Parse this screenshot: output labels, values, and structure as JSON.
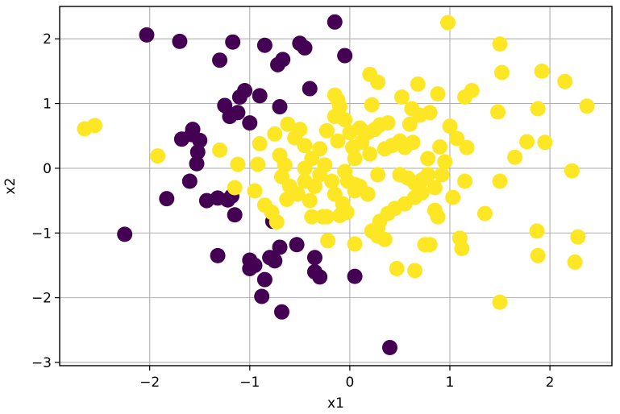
{
  "chart_data": {
    "type": "scatter",
    "title": "",
    "xlabel": "x1",
    "ylabel": "x2",
    "xlim": [
      -2.9,
      2.62
    ],
    "ylim": [
      -3.05,
      2.5
    ],
    "xticks": [
      -2,
      -1,
      0,
      1,
      2
    ],
    "yticks": [
      -3,
      -2,
      -1,
      0,
      1,
      2
    ],
    "xtick_labels": [
      "−2",
      "−1",
      "0",
      "1",
      "2"
    ],
    "ytick_labels": [
      "−3",
      "−2",
      "−1",
      "0",
      "1",
      "2"
    ],
    "grid": true,
    "colors": {
      "class_0": "#440154",
      "class_1": "#fde725",
      "grid": "#b0b0b0"
    },
    "series": [
      {
        "points": [
          [
            -2.03,
            2.06
          ],
          [
            -1.7,
            1.96
          ],
          [
            -1.17,
            1.95
          ],
          [
            -0.85,
            1.9
          ],
          [
            -0.5,
            1.93
          ],
          [
            -0.45,
            1.86
          ],
          [
            -0.15,
            2.26
          ],
          [
            -0.05,
            1.74
          ],
          [
            -1.3,
            1.67
          ],
          [
            -0.67,
            1.68
          ],
          [
            -0.72,
            1.6
          ],
          [
            -0.4,
            1.23
          ],
          [
            -1.05,
            1.2
          ],
          [
            -1.1,
            1.1
          ],
          [
            -0.9,
            1.12
          ],
          [
            -0.7,
            0.95
          ],
          [
            -1.25,
            0.97
          ],
          [
            -1.2,
            0.8
          ],
          [
            -1.12,
            0.86
          ],
          [
            -1.0,
            0.7
          ],
          [
            -1.57,
            0.6
          ],
          [
            -1.68,
            0.45
          ],
          [
            -1.5,
            0.43
          ],
          [
            -1.58,
            0.52
          ],
          [
            -1.52,
            0.25
          ],
          [
            -1.53,
            0.07
          ],
          [
            -1.6,
            -0.2
          ],
          [
            -1.83,
            -0.47
          ],
          [
            -1.43,
            -0.5
          ],
          [
            -1.32,
            -0.46
          ],
          [
            -1.22,
            -0.49
          ],
          [
            -1.18,
            -0.43
          ],
          [
            -1.15,
            -0.72
          ],
          [
            -2.25,
            -1.02
          ],
          [
            -0.77,
            -0.82
          ],
          [
            -0.7,
            -1.22
          ],
          [
            -0.53,
            -1.18
          ],
          [
            -1.32,
            -1.35
          ],
          [
            -1.0,
            -1.42
          ],
          [
            -0.95,
            -1.5
          ],
          [
            -1.0,
            -1.55
          ],
          [
            -0.75,
            -1.43
          ],
          [
            -0.8,
            -1.38
          ],
          [
            -0.35,
            -1.38
          ],
          [
            -0.35,
            -1.6
          ],
          [
            -0.3,
            -1.68
          ],
          [
            -0.85,
            -1.72
          ],
          [
            -0.88,
            -1.98
          ],
          [
            0.05,
            -1.67
          ],
          [
            -0.68,
            -2.22
          ],
          [
            0.4,
            -2.77
          ]
        ]
      },
      {
        "points": [
          [
            -2.65,
            0.61
          ],
          [
            -2.55,
            0.66
          ],
          [
            -1.92,
            0.19
          ],
          [
            -1.3,
            0.28
          ],
          [
            -1.12,
            0.06
          ],
          [
            -1.15,
            -0.3
          ],
          [
            -0.95,
            -0.35
          ],
          [
            -0.92,
            0.06
          ],
          [
            -0.9,
            0.38
          ],
          [
            -0.85,
            -0.57
          ],
          [
            -0.78,
            -0.68
          ],
          [
            -0.73,
            -0.83
          ],
          [
            -0.75,
            0.53
          ],
          [
            -0.62,
            0.68
          ],
          [
            -0.55,
            0.47
          ],
          [
            -0.5,
            0.6
          ],
          [
            -0.45,
            0.35
          ],
          [
            -0.7,
            0.2
          ],
          [
            -0.65,
            0.05
          ],
          [
            -0.68,
            -0.13
          ],
          [
            -0.6,
            -0.28
          ],
          [
            -0.63,
            -0.48
          ],
          [
            -0.52,
            -0.4
          ],
          [
            -0.45,
            -0.2
          ],
          [
            -0.45,
            0.0
          ],
          [
            -0.38,
            0.15
          ],
          [
            -0.3,
            0.3
          ],
          [
            -0.25,
            0.05
          ],
          [
            -0.3,
            -0.1
          ],
          [
            -0.35,
            -0.28
          ],
          [
            -0.4,
            -0.5
          ],
          [
            -0.38,
            -0.75
          ],
          [
            -0.27,
            -0.75
          ],
          [
            -0.22,
            -1.12
          ],
          [
            -0.23,
            0.58
          ],
          [
            -0.15,
            0.8
          ],
          [
            -0.12,
            1.05
          ],
          [
            -0.15,
            1.13
          ],
          [
            -0.1,
            0.95
          ],
          [
            -0.05,
            0.75
          ],
          [
            0.0,
            0.55
          ],
          [
            0.03,
            0.32
          ],
          [
            0.05,
            0.15
          ],
          [
            -0.05,
            -0.05
          ],
          [
            -0.15,
            -0.4
          ],
          [
            -0.08,
            -0.7
          ],
          [
            -0.12,
            0.42
          ],
          [
            -0.18,
            -0.2
          ],
          [
            0.05,
            -0.25
          ],
          [
            -0.02,
            -0.2
          ],
          [
            0.1,
            0.62
          ],
          [
            0.18,
            0.55
          ],
          [
            0.25,
            0.6
          ],
          [
            0.3,
            0.67
          ],
          [
            0.38,
            0.7
          ],
          [
            0.12,
            0.4
          ],
          [
            0.2,
            0.22
          ],
          [
            0.35,
            0.3
          ],
          [
            0.42,
            0.35
          ],
          [
            0.5,
            0.42
          ],
          [
            0.55,
            0.32
          ],
          [
            0.63,
            0.4
          ],
          [
            0.6,
            0.68
          ],
          [
            0.7,
            0.82
          ],
          [
            0.62,
            0.92
          ],
          [
            0.8,
            0.86
          ],
          [
            0.52,
            1.1
          ],
          [
            0.68,
            1.3
          ],
          [
            0.88,
            1.15
          ],
          [
            0.28,
            1.33
          ],
          [
            0.2,
            1.45
          ],
          [
            0.22,
            0.98
          ],
          [
            -0.07,
            -0.55
          ],
          [
            0.05,
            -0.35
          ],
          [
            0.1,
            -0.28
          ],
          [
            0.18,
            -0.4
          ],
          [
            0.28,
            -0.1
          ],
          [
            0.5,
            -0.1
          ],
          [
            0.58,
            -0.15
          ],
          [
            0.65,
            -0.23
          ],
          [
            0.72,
            -0.18
          ],
          [
            0.78,
            -0.1
          ],
          [
            0.85,
            -0.3
          ],
          [
            0.92,
            -0.1
          ],
          [
            0.95,
            0.1
          ],
          [
            0.9,
            0.33
          ],
          [
            0.78,
            0.15
          ],
          [
            0.72,
            -0.38
          ],
          [
            0.65,
            -0.45
          ],
          [
            0.55,
            -0.55
          ],
          [
            0.45,
            -0.62
          ],
          [
            0.38,
            -0.7
          ],
          [
            0.3,
            -0.82
          ],
          [
            0.28,
            -0.92
          ],
          [
            0.22,
            -0.97
          ],
          [
            0.35,
            -1.1
          ],
          [
            0.28,
            -1.05
          ],
          [
            0.47,
            -1.55
          ],
          [
            0.65,
            -1.58
          ],
          [
            0.75,
            -1.18
          ],
          [
            0.8,
            -1.18
          ],
          [
            0.85,
            -0.65
          ],
          [
            0.88,
            -0.75
          ],
          [
            0.05,
            -1.17
          ],
          [
            -0.03,
            -0.68
          ],
          [
            -0.1,
            -0.73
          ],
          [
            -0.23,
            -0.75
          ],
          [
            1.0,
            0.65
          ],
          [
            1.07,
            0.46
          ],
          [
            1.15,
            1.1
          ],
          [
            1.22,
            1.2
          ],
          [
            1.17,
            0.32
          ],
          [
            1.15,
            -0.2
          ],
          [
            1.03,
            -0.45
          ],
          [
            1.1,
            -1.08
          ],
          [
            1.12,
            -1.24
          ],
          [
            1.35,
            -0.7
          ],
          [
            1.48,
            0.87
          ],
          [
            1.5,
            1.92
          ],
          [
            1.52,
            1.48
          ],
          [
            1.5,
            -0.2
          ],
          [
            1.65,
            0.17
          ],
          [
            1.77,
            0.41
          ],
          [
            1.88,
            0.92
          ],
          [
            1.92,
            1.5
          ],
          [
            1.95,
            0.4
          ],
          [
            1.87,
            -0.97
          ],
          [
            1.88,
            -1.35
          ],
          [
            2.15,
            1.34
          ],
          [
            2.22,
            -0.04
          ],
          [
            2.25,
            -1.45
          ],
          [
            2.28,
            -1.06
          ],
          [
            2.37,
            0.96
          ],
          [
            1.5,
            -2.07
          ],
          [
            0.98,
            2.25
          ]
        ]
      }
    ]
  }
}
